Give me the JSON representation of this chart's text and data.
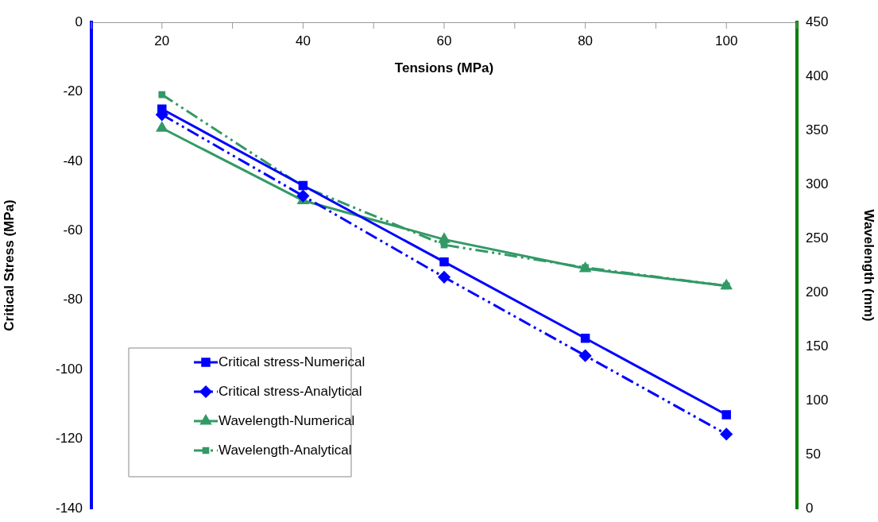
{
  "chart_data": {
    "type": "line",
    "xlabel": "Tensions (MPa)",
    "ylabel": "Critical Stress (MPa)",
    "y2label": "Wavelength (mm)",
    "x": [
      20,
      40,
      60,
      80,
      100
    ],
    "xlim": [
      10,
      110
    ],
    "xticks": [
      {
        "value": 10,
        "label": null
      },
      20,
      {
        "value": 30,
        "label": null
      },
      40,
      {
        "value": 50,
        "label": null
      },
      60,
      {
        "value": 70,
        "label": null
      },
      80,
      {
        "value": 90,
        "label": null
      },
      100,
      {
        "value": 110,
        "label": null
      }
    ],
    "ylim": [
      -140,
      0
    ],
    "yticks": [
      -140,
      -120,
      -100,
      -80,
      -60,
      -40,
      -20,
      0
    ],
    "y2lim": [
      0,
      450
    ],
    "y2ticks": [
      0,
      50,
      100,
      150,
      200,
      250,
      300,
      350,
      400,
      450
    ],
    "grid": false,
    "legend": "bottom left",
    "series": [
      {
        "name": "Critical stress-Numerical",
        "color": "#0000ff",
        "values": [
          -25,
          -47,
          -69,
          -91,
          -113
        ],
        "marker": "square",
        "line_style": "solid"
      },
      {
        "name": "Critical stress-Analytical",
        "color": "#0000ff",
        "values": [
          -26.6,
          -50,
          -73.4,
          -96,
          -118.6
        ],
        "marker": "diamond",
        "line_style": "dashed"
      },
      {
        "name": "Wavelength-Numerical",
        "color": "#339966",
        "values": [
          352,
          285,
          249,
          222,
          206
        ],
        "marker": "triangle",
        "line_style": "solid",
        "axis": "y2"
      },
      {
        "name": "Wavelength-Analytical",
        "color": "#339966",
        "values": [
          383,
          298,
          244,
          223,
          206
        ],
        "marker": "square",
        "line_style": "dashed",
        "axis": "y2"
      }
    ]
  }
}
